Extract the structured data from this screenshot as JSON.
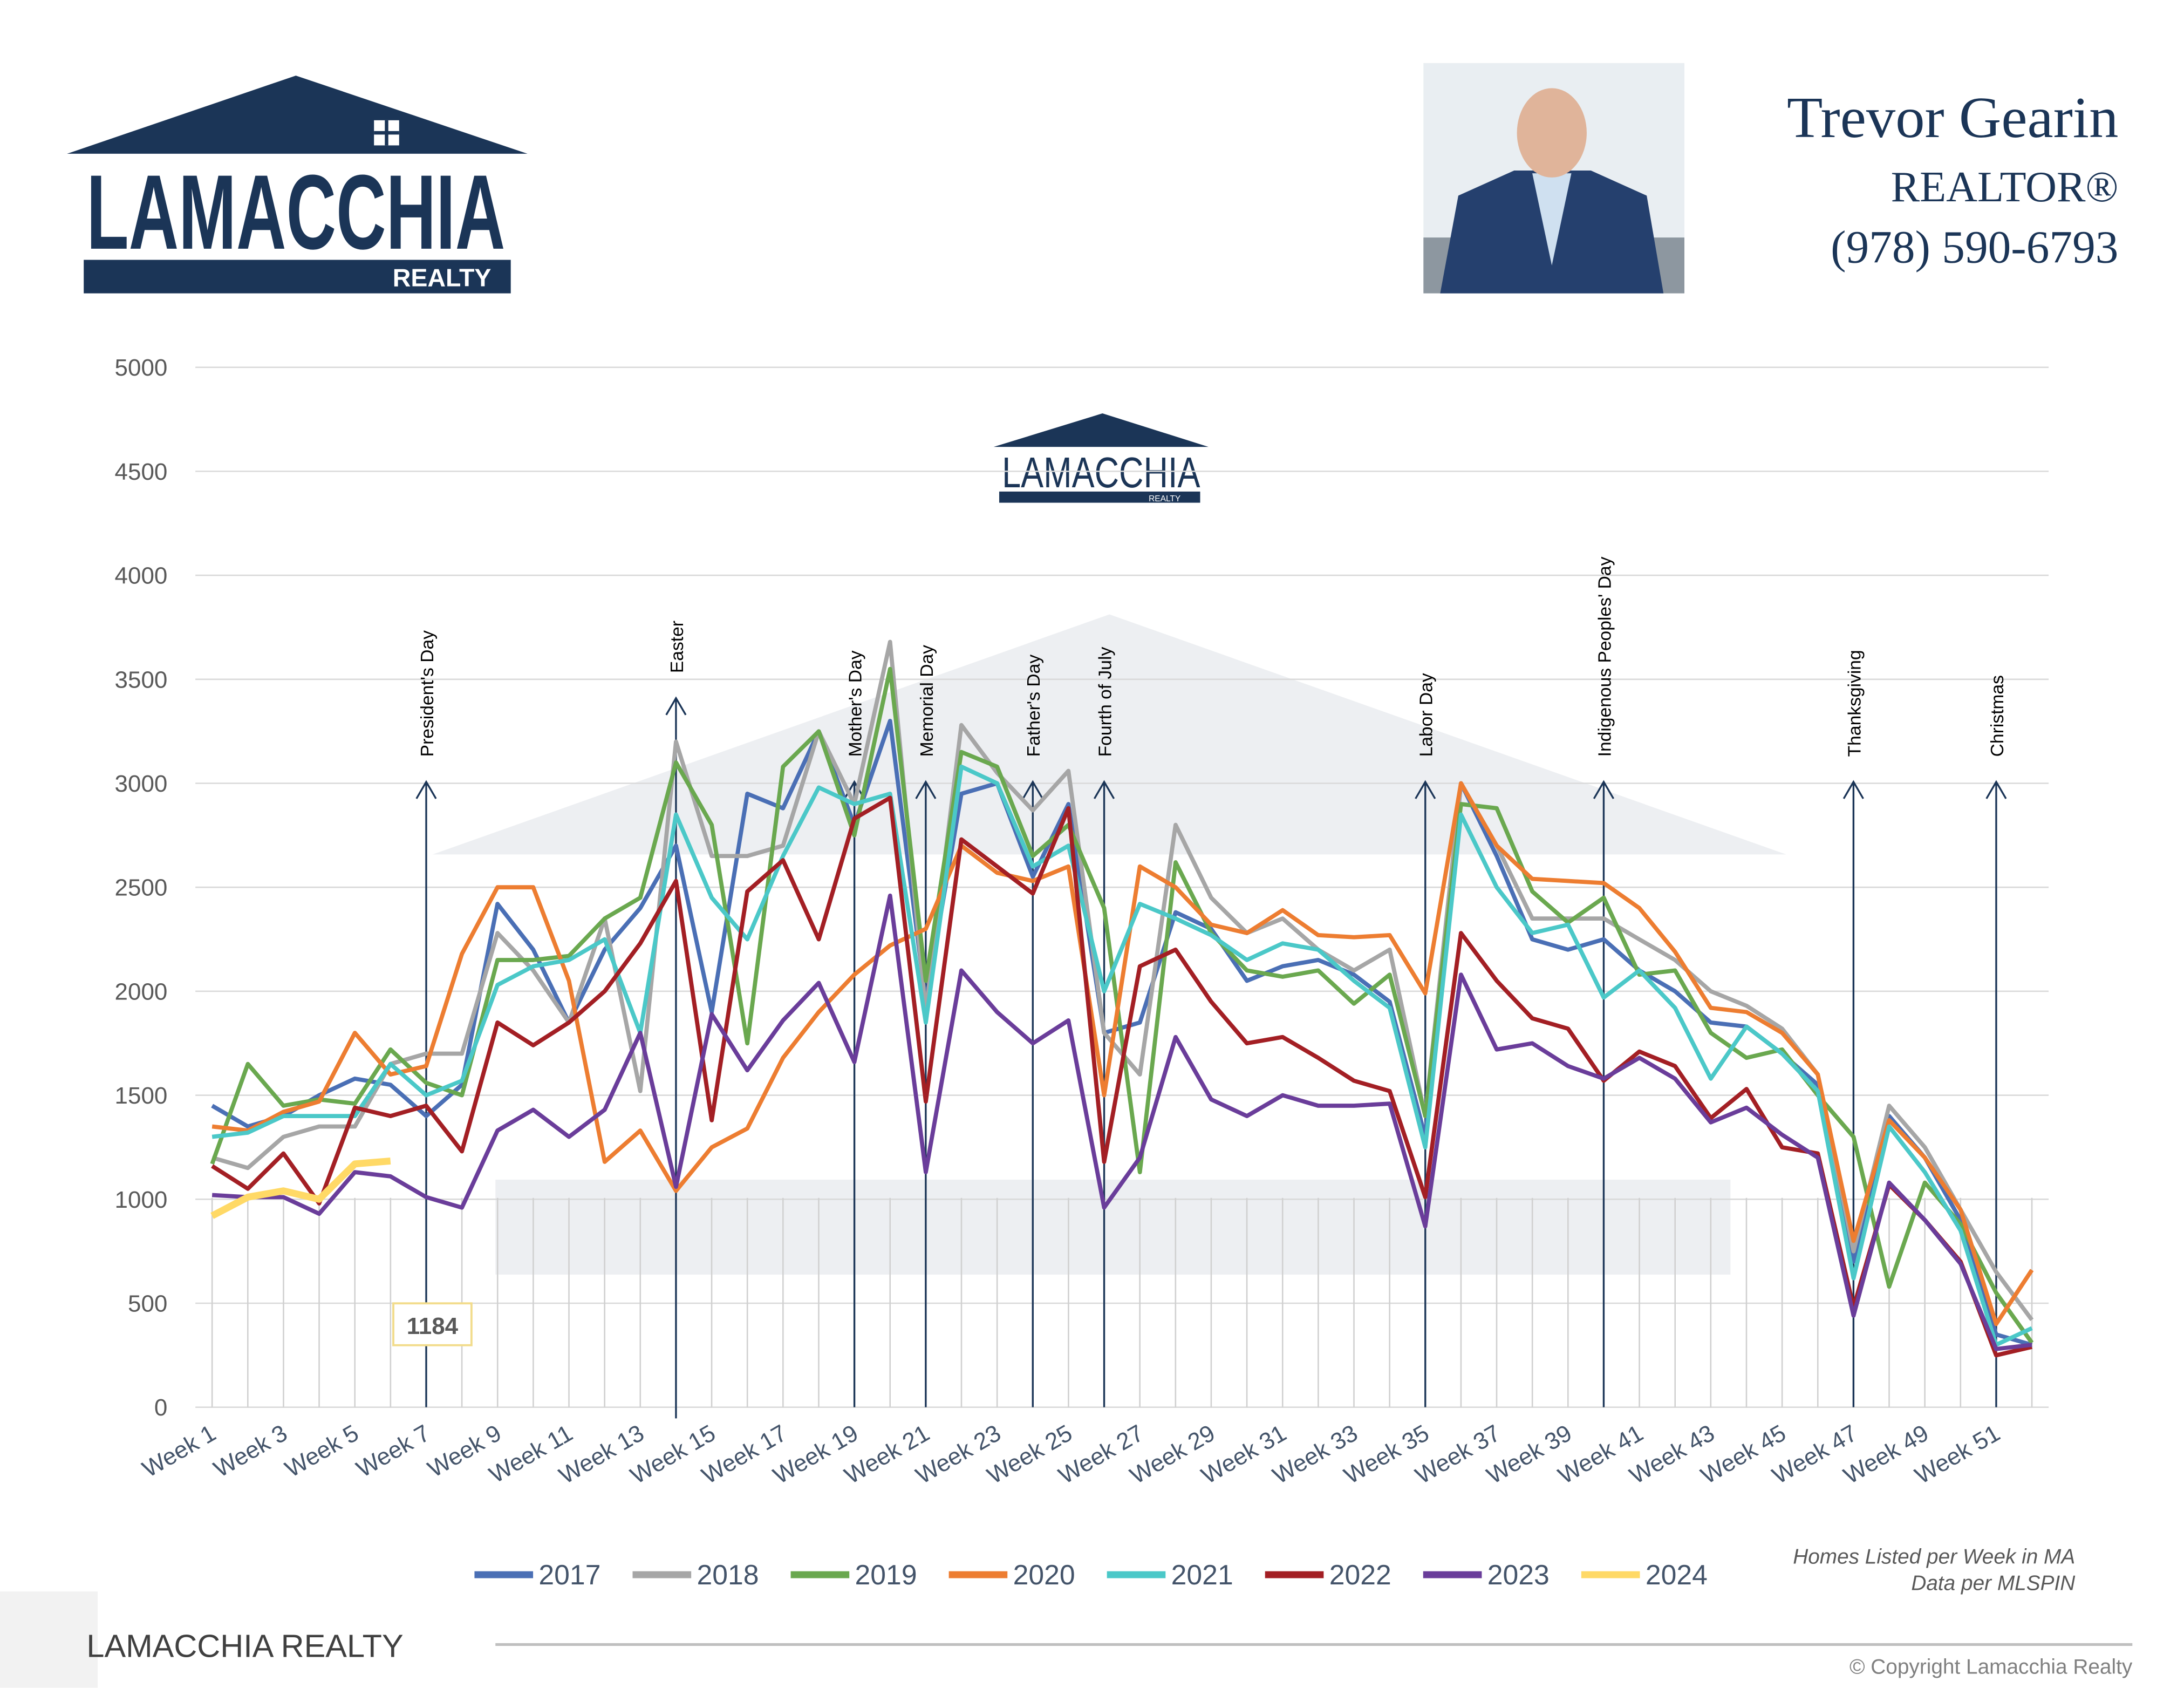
{
  "header": {
    "logo_name": "LAMACCHIA",
    "logo_sub": "REALTY",
    "agent_name": "Trevor Gearin",
    "agent_title": "REALTOR®",
    "agent_phone": "(978) 590-6793"
  },
  "footer": {
    "brand": "LAMACCHIA REALTY",
    "copyright": "© Copyright Lamacchia Realty"
  },
  "chart_data": {
    "type": "line",
    "watermark_name": "LAMACCHIA",
    "watermark_sub": "REALTY",
    "notes": [
      "Homes Listed per Week in MA",
      "Data per MLSPIN"
    ],
    "categories": [
      "Week 1",
      null,
      "Week 3",
      null,
      "Week 5",
      null,
      "Week 7",
      null,
      "Week 9",
      null,
      "Week 11",
      null,
      "Week 13",
      null,
      "Week 15",
      null,
      "Week 17",
      null,
      "Week 19",
      null,
      "Week 21",
      null,
      "Week 23",
      null,
      "Week 25",
      null,
      "Week 27",
      null,
      "Week 29",
      null,
      "Week 31",
      null,
      "Week 33",
      null,
      "Week 35",
      null,
      "Week 37",
      null,
      "Week 39",
      null,
      "Week 41",
      null,
      "Week 43",
      null,
      "Week 45",
      null,
      "Week 47",
      null,
      "Week 49",
      null,
      "Week 51",
      null
    ],
    "ylim": [
      0,
      5000
    ],
    "yticks": [
      0,
      500,
      1000,
      1500,
      2000,
      2500,
      3000,
      3500,
      4000,
      4500,
      5000
    ],
    "grid": true,
    "legend": "bottom",
    "annotations": [
      {
        "text": "President's Day",
        "x": 7
      },
      {
        "text": "Easter",
        "x": 14
      },
      {
        "text": "Mother's Day",
        "x": 19
      },
      {
        "text": "Memorial Day",
        "x": 21
      },
      {
        "text": "Father's Day",
        "x": 24
      },
      {
        "text": "Fourth of July",
        "x": 26
      },
      {
        "text": "Labor Day",
        "x": 35
      },
      {
        "text": "Indigenous Peoples' Day",
        "x": 40
      },
      {
        "text": "Thanksgiving",
        "x": 47
      },
      {
        "text": "Christmas",
        "x": 51
      }
    ],
    "series": [
      {
        "name": "2017",
        "color": "#4a6fb5",
        "values": [
          1450,
          1350,
          1400,
          1500,
          1580,
          1550,
          1400,
          1550,
          2420,
          2200,
          1850,
          2200,
          2400,
          2700,
          1900,
          2950,
          2880,
          3250,
          2800,
          3300,
          1950,
          2950,
          3000,
          2550,
          2900,
          1800,
          1850,
          2380,
          2300,
          2050,
          2120,
          2150,
          2080,
          1950,
          1300,
          3000,
          2650,
          2250,
          2200,
          2250,
          2100,
          2000,
          1850,
          1830,
          1700,
          1550,
          700,
          1400,
          1200,
          900,
          350,
          300
        ]
      },
      {
        "name": "2018",
        "color": "#a6a6a6",
        "values": [
          1200,
          1150,
          1300,
          1350,
          1350,
          1650,
          1700,
          1700,
          2280,
          2100,
          1850,
          2350,
          1520,
          3200,
          2650,
          2650,
          2700,
          3250,
          2900,
          3680,
          1900,
          3280,
          3050,
          2870,
          3060,
          1800,
          1600,
          2800,
          2450,
          2280,
          2350,
          2200,
          2100,
          2200,
          1400,
          3000,
          2700,
          2350,
          2350,
          2350,
          2250,
          2150,
          2000,
          1930,
          1820,
          1600,
          750,
          1450,
          1250,
          950,
          650,
          420
        ]
      },
      {
        "name": "2019",
        "color": "#6aa84f",
        "values": [
          1170,
          1650,
          1450,
          1480,
          1460,
          1720,
          1560,
          1500,
          2150,
          2150,
          2170,
          2350,
          2450,
          3100,
          2800,
          1750,
          3080,
          3250,
          2750,
          3550,
          2050,
          3150,
          3080,
          2650,
          2800,
          2400,
          1130,
          2620,
          2280,
          2100,
          2070,
          2100,
          1940,
          2080,
          1400,
          2900,
          2880,
          2480,
          2330,
          2450,
          2080,
          2100,
          1800,
          1680,
          1720,
          1500,
          1300,
          580,
          1080,
          880,
          550,
          310
        ]
      },
      {
        "name": "2020",
        "color": "#ed7d31",
        "values": [
          1350,
          1330,
          1420,
          1470,
          1800,
          1600,
          1640,
          2180,
          2500,
          2500,
          2050,
          1180,
          1330,
          1040,
          1250,
          1340,
          1680,
          1900,
          2080,
          2220,
          2300,
          2700,
          2570,
          2530,
          2600,
          1500,
          2600,
          2500,
          2320,
          2280,
          2390,
          2270,
          2260,
          2270,
          1990,
          3000,
          2700,
          2540,
          2530,
          2520,
          2400,
          2190,
          1920,
          1900,
          1800,
          1600,
          800,
          1380,
          1200,
          950,
          400,
          660
        ]
      },
      {
        "name": "2021",
        "color": "#4bc8c8",
        "values": [
          1300,
          1320,
          1400,
          1400,
          1400,
          1650,
          1500,
          1570,
          2030,
          2120,
          2150,
          2250,
          1800,
          2850,
          2450,
          2250,
          2650,
          2980,
          2900,
          2950,
          1850,
          3080,
          3000,
          2600,
          2700,
          2000,
          2420,
          2350,
          2270,
          2150,
          2230,
          2200,
          2050,
          1920,
          1250,
          2850,
          2500,
          2280,
          2320,
          1970,
          2100,
          1920,
          1580,
          1830,
          1700,
          1520,
          620,
          1350,
          1130,
          850,
          300,
          380
        ]
      },
      {
        "name": "2022",
        "color": "#a31f24",
        "values": [
          1160,
          1050,
          1220,
          980,
          1440,
          1400,
          1450,
          1230,
          1850,
          1740,
          1850,
          2000,
          2230,
          2530,
          1380,
          2480,
          2630,
          2250,
          2830,
          2930,
          1470,
          2730,
          2600,
          2470,
          2880,
          1180,
          2120,
          2200,
          1950,
          1750,
          1780,
          1680,
          1570,
          1520,
          1010,
          2280,
          2050,
          1870,
          1820,
          1570,
          1710,
          1640,
          1390,
          1530,
          1250,
          1220,
          480,
          1070,
          900,
          700,
          250,
          290
        ]
      },
      {
        "name": "2023",
        "color": "#6a3d9a",
        "values": [
          1020,
          1010,
          1010,
          930,
          1130,
          1110,
          1010,
          960,
          1330,
          1430,
          1300,
          1430,
          1800,
          1060,
          1890,
          1620,
          1860,
          2040,
          1660,
          2460,
          1130,
          2100,
          1900,
          1750,
          1860,
          960,
          1200,
          1780,
          1480,
          1400,
          1500,
          1450,
          1450,
          1460,
          870,
          2080,
          1720,
          1750,
          1640,
          1580,
          1680,
          1580,
          1370,
          1440,
          1310,
          1200,
          440,
          1080,
          900,
          690,
          280,
          300
        ]
      },
      {
        "name": "2024",
        "color": "#ffd966",
        "width": 5,
        "values": [
          920,
          1010,
          1040,
          1000,
          1170,
          1184,
          null,
          null,
          null,
          null,
          null,
          null,
          null,
          null,
          null,
          null,
          null,
          null,
          null,
          null,
          null,
          null,
          null,
          null,
          null,
          null,
          null,
          null,
          null,
          null,
          null,
          null,
          null,
          null,
          null,
          null,
          null,
          null,
          null,
          null,
          null,
          null,
          null,
          null,
          null,
          null,
          null,
          null,
          null,
          null,
          null,
          null
        ],
        "labeled_point": 5
      }
    ]
  }
}
